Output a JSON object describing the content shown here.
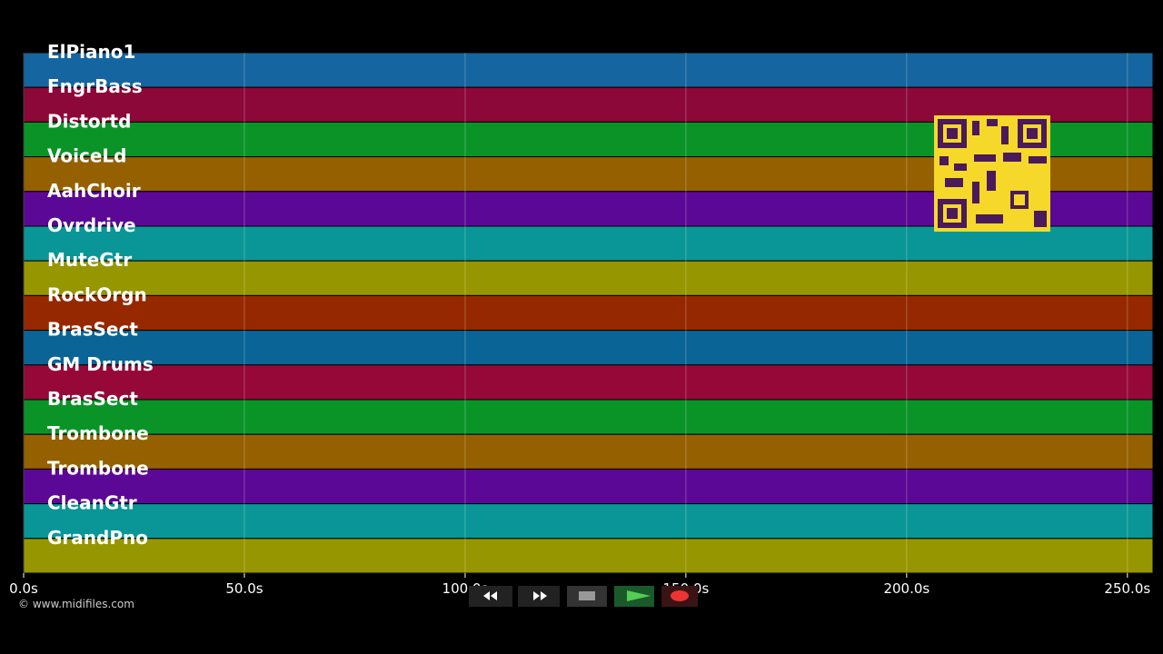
{
  "chart_data": {
    "type": "timeline",
    "tracks": [
      {
        "name": "ElPiano1",
        "color": "#1565a0"
      },
      {
        "name": "FngrBass",
        "color": "#8c0838"
      },
      {
        "name": "Distortd",
        "color": "#0a9428"
      },
      {
        "name": "VoiceLd",
        "color": "#956000"
      },
      {
        "name": "AahChoir",
        "color": "#5c0896"
      },
      {
        "name": "Ovrdrive",
        "color": "#0a9696"
      },
      {
        "name": "MuteGtr",
        "color": "#969600"
      },
      {
        "name": "RockOrgn",
        "color": "#962800"
      },
      {
        "name": "BrasSect",
        "color": "#0a6496"
      },
      {
        "name": "GM Drums",
        "color": "#960838"
      },
      {
        "name": "BrasSect",
        "color": "#0a9428"
      },
      {
        "name": "Trombone",
        "color": "#956000"
      },
      {
        "name": "Trombone",
        "color": "#5c0896"
      },
      {
        "name": "CleanGtr",
        "color": "#0a9696"
      },
      {
        "name": "GrandPno",
        "color": "#969600"
      }
    ],
    "xlim": [
      0,
      255.8
    ],
    "xticks": [
      {
        "value": 0,
        "label": "0.0s"
      },
      {
        "value": 50,
        "label": "50.0s"
      },
      {
        "value": 100,
        "label": "100.0s"
      },
      {
        "value": 150,
        "label": "150.0s"
      },
      {
        "value": 200,
        "label": "200.0s"
      },
      {
        "value": 250,
        "label": "250.0s"
      }
    ]
  },
  "footer": {
    "copyright": "© www.midifiles.com"
  }
}
